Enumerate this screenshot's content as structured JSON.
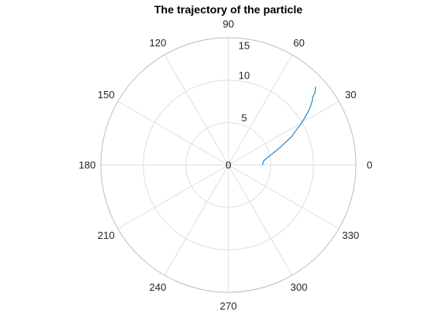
{
  "chart_data": {
    "type": "polar-line",
    "title": "The trajectory of the particle",
    "theta_unit": "degrees",
    "r_lim": [
      0,
      15
    ],
    "r_ticks": [
      0,
      5,
      10,
      15
    ],
    "theta_ticks": [
      0,
      30,
      60,
      90,
      120,
      150,
      180,
      210,
      240,
      270,
      300,
      330
    ],
    "grid": true,
    "series": [
      {
        "color": "#0072BD",
        "points": [
          {
            "theta": 0,
            "r": 4.0
          },
          {
            "theta": 7,
            "r": 4.2
          },
          {
            "theta": 12,
            "r": 4.9
          },
          {
            "theta": 16,
            "r": 5.7
          },
          {
            "theta": 19,
            "r": 6.5
          },
          {
            "theta": 22,
            "r": 7.3
          },
          {
            "theta": 24,
            "r": 8.1
          },
          {
            "theta": 27,
            "r": 8.9
          },
          {
            "theta": 29,
            "r": 9.6
          },
          {
            "theta": 31,
            "r": 10.3
          },
          {
            "theta": 33,
            "r": 11.0
          },
          {
            "theta": 35,
            "r": 11.7
          },
          {
            "theta": 37,
            "r": 12.3
          },
          {
            "theta": 39,
            "r": 12.8
          },
          {
            "theta": 40,
            "r": 13.3
          },
          {
            "theta": 42,
            "r": 13.8
          }
        ]
      }
    ]
  }
}
